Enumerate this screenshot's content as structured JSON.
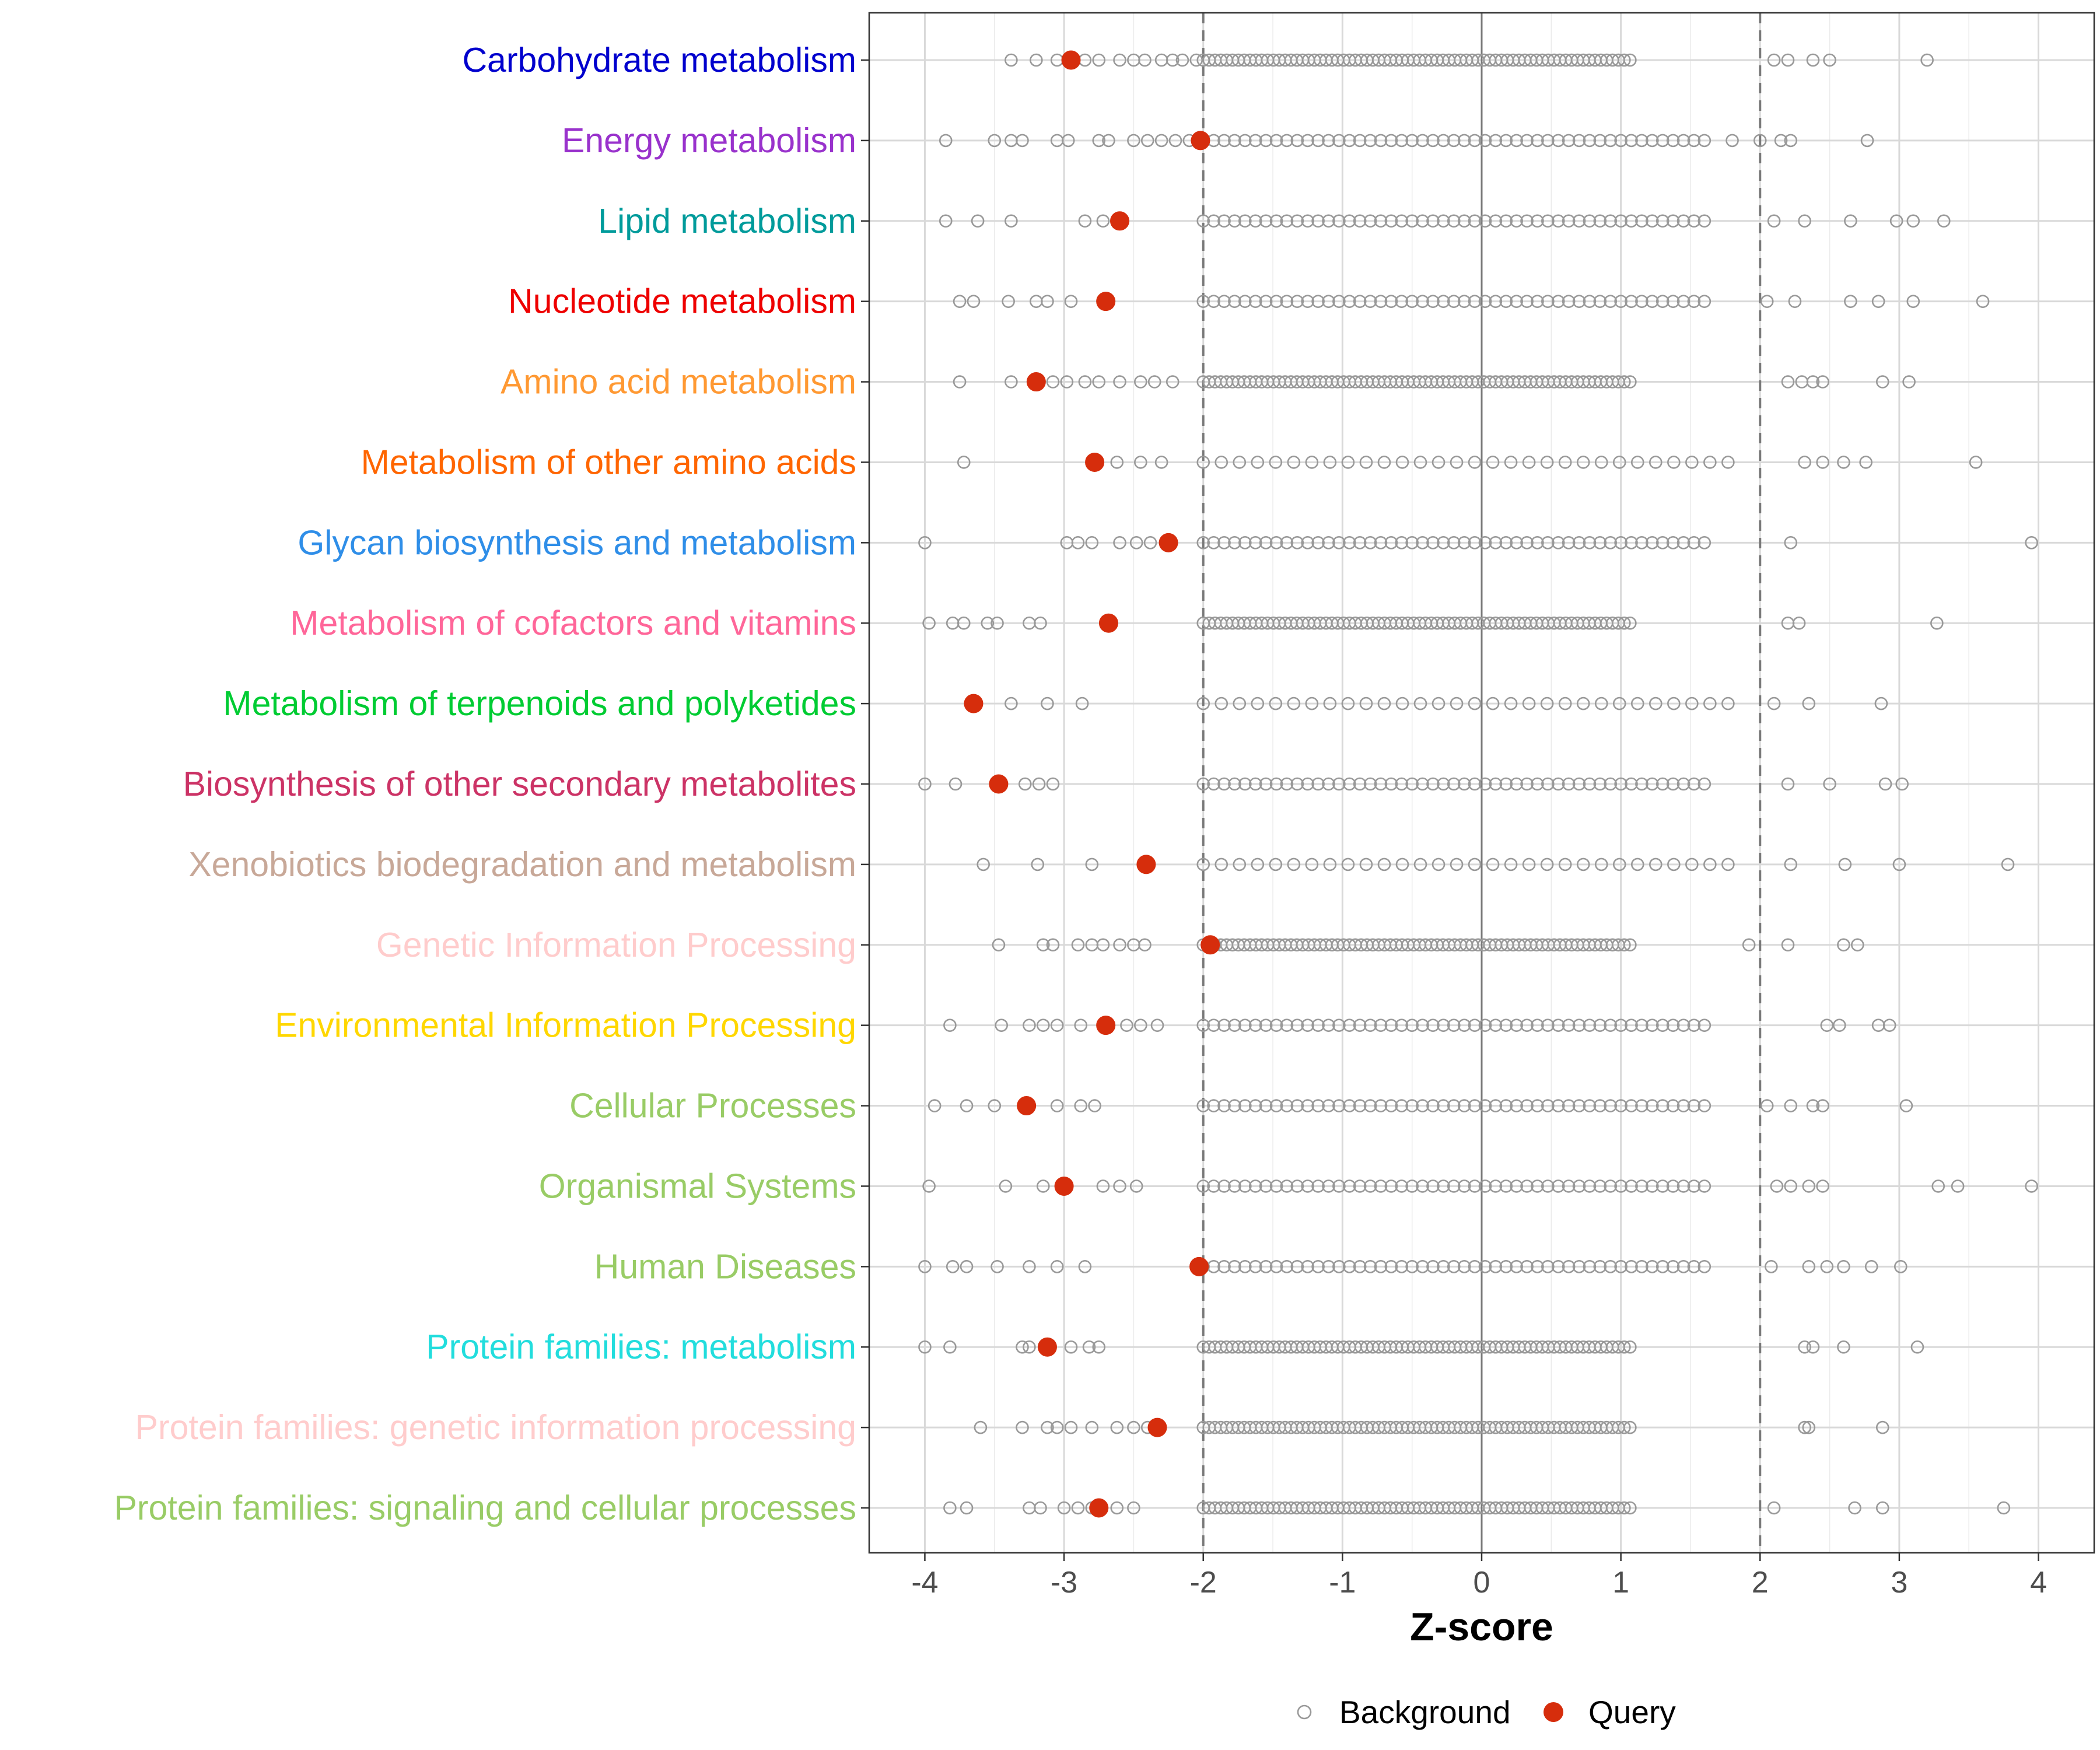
{
  "chart_data": {
    "type": "scatter",
    "xlabel": "Z-score",
    "xlim": [
      -4.4,
      4.4
    ],
    "x_ticks": [
      "-4",
      "-3",
      "-2",
      "-1",
      "0",
      "1",
      "2",
      "3",
      "4"
    ],
    "x_tick_values": [
      -4,
      -3,
      -2,
      -1,
      0,
      1,
      2,
      3,
      4
    ],
    "threshold_lines": [
      -2,
      2
    ],
    "zero_line": 0,
    "legend": [
      {
        "name": "Background",
        "marker": "open-circle",
        "color": "#999999"
      },
      {
        "name": "Query",
        "marker": "filled-circle",
        "color": "#d62d0c"
      }
    ],
    "categories": [
      {
        "label": "Carbohydrate metabolism",
        "color": "#0000cd",
        "query": -2.95,
        "background": {
          "min": -3.38,
          "max": 3.2,
          "density": "dense",
          "points": [
            -3.38,
            -3.2,
            -3.05,
            -2.95,
            -2.85,
            -2.75,
            -2.6,
            -2.5,
            -2.42,
            -2.3,
            -2.22,
            -2.15,
            -2.05,
            2.1,
            2.2,
            2.38,
            2.5,
            3.2
          ]
        }
      },
      {
        "label": "Energy metabolism",
        "color": "#9932cc",
        "query": -2.02,
        "background": {
          "min": -3.85,
          "max": 2.77,
          "density": "medium",
          "points": [
            -3.85,
            -3.5,
            -3.38,
            -3.3,
            -3.05,
            -2.97,
            -2.75,
            -2.68,
            -2.5,
            -2.4,
            -2.3,
            -2.2,
            -2.1,
            1.8,
            2.0,
            2.15,
            2.22,
            2.77
          ]
        }
      },
      {
        "label": "Lipid metabolism",
        "color": "#009b9b",
        "query": -2.6,
        "background": {
          "min": -3.85,
          "max": 3.32,
          "density": "medium",
          "points": [
            -3.85,
            -3.62,
            -3.38,
            -2.85,
            -2.72,
            2.1,
            2.32,
            2.65,
            2.98,
            3.1,
            3.32
          ]
        }
      },
      {
        "label": "Nucleotide metabolism",
        "color": "#ee0000",
        "query": -2.7,
        "background": {
          "min": -3.75,
          "max": 3.6,
          "density": "medium",
          "points": [
            -3.75,
            -3.65,
            -3.4,
            -3.2,
            -3.12,
            -2.95,
            2.05,
            2.25,
            2.65,
            2.85,
            3.1,
            3.6
          ]
        }
      },
      {
        "label": "Amino acid metabolism",
        "color": "#ff9933",
        "query": -3.2,
        "background": {
          "min": -3.75,
          "max": 3.07,
          "density": "dense",
          "points": [
            -3.75,
            -3.38,
            -3.08,
            -2.98,
            -2.85,
            -2.75,
            -2.6,
            -2.45,
            -2.35,
            -2.22,
            2.2,
            2.3,
            2.38,
            2.45,
            2.88,
            3.07
          ]
        }
      },
      {
        "label": "Metabolism of other amino acids",
        "color": "#ff6600",
        "query": -2.78,
        "background": {
          "min": -3.72,
          "max": 3.55,
          "density": "sparse",
          "points": [
            -3.72,
            -2.62,
            -2.45,
            -2.3,
            2.32,
            2.45,
            2.6,
            2.76,
            3.55
          ]
        }
      },
      {
        "label": "Glycan biosynthesis and metabolism",
        "color": "#2f8ee8",
        "query": -2.25,
        "background": {
          "min": -4.0,
          "max": 3.95,
          "density": "medium",
          "points": [
            -4.0,
            -2.98,
            -2.9,
            -2.8,
            -2.6,
            -2.48,
            -2.38,
            2.22,
            3.95
          ]
        }
      },
      {
        "label": "Metabolism of cofactors and vitamins",
        "color": "#ff6699",
        "query": -2.68,
        "background": {
          "min": -3.97,
          "max": 3.27,
          "density": "dense",
          "points": [
            -3.97,
            -3.8,
            -3.72,
            -3.55,
            -3.48,
            -3.25,
            -3.17,
            2.2,
            2.28,
            3.27
          ]
        }
      },
      {
        "label": "Metabolism of terpenoids and polyketides",
        "color": "#00cc33",
        "query": -3.65,
        "background": {
          "min": -3.38,
          "max": 2.87,
          "density": "sparse",
          "points": [
            -3.38,
            -3.12,
            -2.87,
            2.1,
            2.35,
            2.87
          ]
        }
      },
      {
        "label": "Biosynthesis of other secondary metabolites",
        "color": "#cc3366",
        "query": -3.47,
        "background": {
          "min": -4.0,
          "max": 3.02,
          "density": "medium",
          "points": [
            -4.0,
            -3.78,
            -3.28,
            -3.18,
            -3.08,
            2.2,
            2.5,
            2.9,
            3.02
          ]
        }
      },
      {
        "label": "Xenobiotics biodegradation and metabolism",
        "color": "#c8a898",
        "query": -2.41,
        "background": {
          "min": -3.58,
          "max": 3.78,
          "density": "sparse",
          "points": [
            -3.58,
            -3.19,
            -2.8,
            2.22,
            2.61,
            3.0,
            3.78
          ]
        }
      },
      {
        "label": "Genetic Information Processing",
        "color": "#ffcccc",
        "query": -1.95,
        "background": {
          "min": -3.47,
          "max": 2.7,
          "density": "dense",
          "points": [
            -3.47,
            -3.15,
            -3.08,
            -2.9,
            -2.8,
            -2.72,
            -2.6,
            -2.5,
            -2.42,
            1.92,
            2.2,
            2.6,
            2.7
          ]
        }
      },
      {
        "label": "Environmental Information Processing",
        "color": "#ffd700",
        "query": -2.7,
        "background": {
          "min": -3.82,
          "max": 2.93,
          "density": "medium",
          "points": [
            -3.82,
            -3.45,
            -3.25,
            -3.15,
            -3.05,
            -2.88,
            -2.55,
            -2.45,
            -2.33,
            2.48,
            2.57,
            2.85,
            2.93
          ]
        }
      },
      {
        "label": "Cellular Processes",
        "color": "#99cc66",
        "query": -3.27,
        "background": {
          "min": -3.93,
          "max": 3.05,
          "density": "medium",
          "points": [
            -3.93,
            -3.7,
            -3.5,
            -3.05,
            -2.88,
            -2.78,
            2.05,
            2.22,
            2.38,
            2.45,
            3.05
          ]
        }
      },
      {
        "label": "Organismal Systems",
        "color": "#99cc66",
        "query": -3.0,
        "background": {
          "min": -3.97,
          "max": 3.95,
          "density": "medium",
          "points": [
            -3.97,
            -3.42,
            -3.15,
            -2.72,
            -2.6,
            -2.48,
            2.12,
            2.22,
            2.35,
            2.45,
            3.28,
            3.42,
            3.95
          ]
        }
      },
      {
        "label": "Human Diseases",
        "color": "#99cc66",
        "query": -2.03,
        "background": {
          "min": -4.0,
          "max": 3.01,
          "density": "medium",
          "points": [
            -4.0,
            -3.8,
            -3.7,
            -3.48,
            -3.25,
            -3.05,
            -2.85,
            2.08,
            2.35,
            2.48,
            2.6,
            2.8,
            3.01
          ]
        }
      },
      {
        "label": "Protein families: metabolism",
        "color": "#22dddd",
        "query": -3.12,
        "background": {
          "min": -4.0,
          "max": 3.13,
          "density": "dense",
          "points": [
            -4.0,
            -3.82,
            -3.3,
            -3.25,
            -2.95,
            -2.82,
            -2.75,
            2.32,
            2.38,
            2.6,
            3.13
          ]
        }
      },
      {
        "label": "Protein families: genetic information processing",
        "color": "#ffcccc",
        "query": -2.33,
        "background": {
          "min": -3.6,
          "max": 2.88,
          "density": "dense",
          "points": [
            -3.6,
            -3.3,
            -3.12,
            -3.05,
            -2.95,
            -2.8,
            -2.62,
            -2.5,
            -2.4,
            2.32,
            2.35,
            2.88
          ]
        }
      },
      {
        "label": "Protein families: signaling and cellular processes",
        "color": "#99cc66",
        "query": -2.75,
        "background": {
          "min": -3.82,
          "max": 3.75,
          "density": "dense",
          "points": [
            -3.82,
            -3.7,
            -3.25,
            -3.17,
            -3.0,
            -2.9,
            -2.8,
            -2.62,
            -2.5,
            2.1,
            2.68,
            2.88,
            3.75
          ]
        }
      }
    ]
  }
}
